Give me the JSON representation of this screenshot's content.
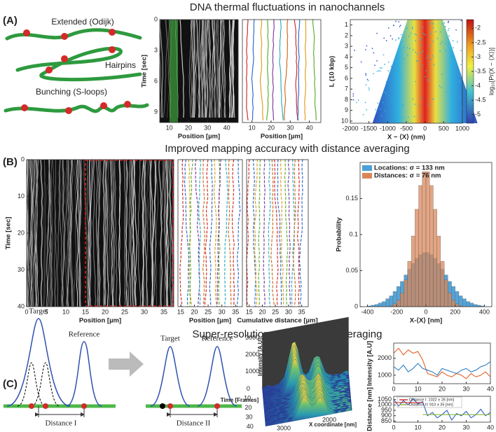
{
  "panels": [
    {
      "label": "(A)",
      "title": "DNA thermal fluctuations in nanochannels"
    },
    {
      "label": "(B)",
      "title": "Improved mapping accuracy with distance averaging"
    },
    {
      "label": "(C)",
      "title": "Super-resolution with distance averaging"
    }
  ],
  "cartoon_labels": [
    "Extended (Odijk)",
    "Hairpins",
    "Bunching (S-loops)"
  ],
  "peak_labels": [
    "Target",
    "Reference",
    "Distance I",
    "Target",
    "Reference",
    "Distance II"
  ],
  "chart_data": [
    {
      "type": "image",
      "xlabel": "Position [µm]",
      "ylabel": "Time [sec]",
      "xlim": [
        5,
        46
      ],
      "xticks": [
        10,
        20,
        30,
        40
      ],
      "ylim": [
        0,
        10
      ],
      "yticks": [
        0,
        3,
        6,
        9
      ],
      "y_inverted": true
    },
    {
      "type": "image",
      "xlabel": "Position [µm]",
      "xlim": [
        5,
        46
      ],
      "xticks": [
        10,
        20,
        30,
        40
      ]
    },
    {
      "type": "heatmap",
      "xlabel": "X − ⟨X⟩ (nm)",
      "ylabel": "L (10 kbp)",
      "colorbar_label": "log₁₀[Pr(X − ⟨X⟩)]",
      "xlim": [
        -2000,
        1000
      ],
      "xticks": [
        -2000,
        -1500,
        -1000,
        -500,
        0,
        500,
        1000
      ],
      "ylim": [
        0.5,
        10.2
      ],
      "yticks": [
        1,
        2,
        3,
        4,
        5,
        6,
        7,
        8,
        9,
        10
      ],
      "y_inverted": true,
      "clim": [
        -1.7,
        -5.3
      ],
      "cticks": [
        -2,
        -2.5,
        -3,
        -3.5,
        -4,
        -4.5,
        -5
      ]
    },
    {
      "type": "image",
      "xlabel": "Position [µm]",
      "ylabel": "Time [sec]",
      "xlim": [
        0,
        37.5
      ],
      "xticks": [
        0,
        5,
        10,
        15,
        20,
        25,
        30,
        35
      ],
      "ylim": [
        0,
        40
      ],
      "yticks": [
        0,
        10,
        20,
        30,
        40
      ],
      "y_inverted": true
    },
    {
      "type": "image",
      "xlabel": "Position [µm]",
      "xlim": [
        14,
        37.5
      ],
      "xticks": [
        15,
        20,
        25,
        30,
        35
      ]
    },
    {
      "type": "image",
      "xlabel": "Cumulative distance [µm]",
      "xlim": [
        14,
        37.5
      ],
      "xticks": [
        15,
        20,
        25,
        30,
        35
      ]
    },
    {
      "type": "histogram",
      "xlabel": "X-⟨X⟩ [nm]",
      "ylabel": "Probability",
      "xlim": [
        -450,
        450
      ],
      "xticks": [
        -400,
        -200,
        0,
        200,
        400
      ],
      "ylim": [
        0,
        0.2
      ],
      "yticks": [
        0,
        0.05,
        0.1,
        0.15
      ],
      "bins": [
        -400,
        -375,
        -350,
        -325,
        -300,
        -275,
        -250,
        -225,
        -200,
        -175,
        -150,
        -125,
        -100,
        -75,
        -50,
        -25,
        0,
        25,
        50,
        75,
        100,
        125,
        150,
        175,
        200,
        225,
        250,
        275,
        300,
        325,
        350,
        375,
        400
      ],
      "series": [
        {
          "name": "Locations: σ = 133 nm",
          "color": "#4d9fd6",
          "values": [
            0.001,
            0.002,
            0.003,
            0.005,
            0.007,
            0.011,
            0.015,
            0.021,
            0.028,
            0.035,
            0.044,
            0.052,
            0.06,
            0.067,
            0.072,
            0.075,
            0.075,
            0.072,
            0.067,
            0.06,
            0.052,
            0.044,
            0.035,
            0.028,
            0.021,
            0.015,
            0.011,
            0.007,
            0.005,
            0.003,
            0.002,
            0.001
          ]
        },
        {
          "name": "Distances: σ = 76 nm",
          "color": "#d9875a",
          "values": [
            0,
            0,
            0,
            0,
            0,
            0,
            0.001,
            0.004,
            0.009,
            0.019,
            0.037,
            0.063,
            0.098,
            0.135,
            0.168,
            0.187,
            0.187,
            0.168,
            0.135,
            0.098,
            0.063,
            0.037,
            0.019,
            0.009,
            0.004,
            0.001,
            0,
            0,
            0,
            0,
            0,
            0
          ]
        }
      ]
    },
    {
      "type": "surface",
      "zlabel": "Intensity [A.U]",
      "zticks": [
        1000,
        2000,
        3000
      ],
      "ylabel": "Time [Frames]",
      "yticks": [
        0,
        10,
        20,
        30,
        40
      ],
      "xlabel": "X coordinate [nm]",
      "xticks": [
        2000,
        3000
      ]
    },
    {
      "type": "line",
      "ylabel": "Intensity [A.U]",
      "xlim": [
        0,
        40
      ],
      "xticks": [
        0,
        10,
        20,
        30,
        40
      ],
      "ylim": [
        500,
        2900
      ],
      "yticks": [
        1000,
        2000
      ],
      "x": [
        0,
        2,
        4,
        6,
        8,
        10,
        12,
        14,
        16,
        18,
        20,
        22,
        24,
        26,
        28,
        30,
        32,
        34,
        36,
        38,
        40
      ],
      "series": [
        {
          "color": "#e0622a",
          "values": [
            2300,
            2600,
            2200,
            2500,
            2300,
            2400,
            1900,
            1100,
            1000,
            900,
            1200,
            1000,
            900,
            1100,
            1000,
            800,
            1100,
            900,
            1000,
            1200,
            900
          ]
        },
        {
          "color": "#2f7fc1",
          "values": [
            1500,
            1300,
            1600,
            1200,
            1400,
            1700,
            1400,
            1300,
            1200,
            1000,
            1400,
            1300,
            1200,
            1100,
            1300,
            1400,
            1200,
            1300,
            1500,
            1600,
            1800
          ]
        }
      ]
    },
    {
      "type": "line",
      "ylabel": "Distance [nm]",
      "xlabel": "Time [Frames]",
      "xlim": [
        0,
        40
      ],
      "xticks": [
        0,
        10,
        20,
        30,
        40
      ],
      "ylim": [
        840,
        1080
      ],
      "yticks": [
        850,
        900,
        950,
        1000,
        1050
      ],
      "x": [
        0,
        2,
        4,
        6,
        8,
        10,
        12,
        14,
        16,
        18,
        20,
        22,
        24,
        26,
        28,
        30,
        32,
        34,
        36,
        38,
        40
      ],
      "series": [
        {
          "color": "#2f5fc1",
          "values": [
            1050,
            990,
            1040,
            1000,
            1060,
            1010,
            1030,
            900,
            930,
            880,
            910,
            950,
            860,
            920,
            900,
            940,
            880,
            910,
            960,
            900,
            930
          ]
        },
        {
          "name": "Distance I: 1022 ± 26 [nm]",
          "color": "#d03030",
          "values": [
            1022,
            1022,
            1022,
            1022,
            1022,
            1022,
            1022,
            null,
            null,
            null,
            null,
            null,
            null,
            null,
            null,
            null,
            null,
            null,
            null,
            null,
            null
          ]
        },
        {
          "name": "Distance II: 910 ± 35 [nm]",
          "color": "#8ab83a",
          "values": [
            null,
            null,
            null,
            null,
            null,
            null,
            910,
            910,
            910,
            910,
            910,
            910,
            910,
            910,
            910,
            910,
            910,
            910,
            910,
            910,
            910
          ]
        }
      ]
    }
  ]
}
